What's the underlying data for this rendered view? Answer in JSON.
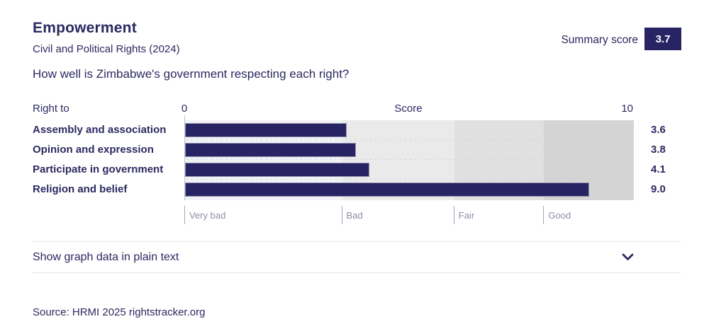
{
  "header": {
    "title": "Empowerment",
    "subtitle": "Civil and Political Rights (2024)",
    "summary_label": "Summary score",
    "summary_value": "3.7"
  },
  "question": "How well is Zimbabwe's government respecting each right?",
  "chart": {
    "col_label": "Right to",
    "axis_min": "0",
    "axis_title": "Score",
    "axis_max": "10",
    "max": 10,
    "bar_color": "#282463",
    "rows": [
      {
        "label": "Assembly and association",
        "value": 3.6,
        "display": "3.6"
      },
      {
        "label": "Opinion and expression",
        "value": 3.8,
        "display": "3.8"
      },
      {
        "label": "Participate in government",
        "value": 4.1,
        "display": "4.1"
      },
      {
        "label": "Religion and belief",
        "value": 9.0,
        "display": "9.0"
      }
    ],
    "bands": [
      {
        "label": "Very bad",
        "from": 0,
        "to": 3.5,
        "color": "#f1f2f6"
      },
      {
        "label": "Bad",
        "from": 3.5,
        "to": 6,
        "color": "#eaeaea"
      },
      {
        "label": "Fair",
        "from": 6,
        "to": 8,
        "color": "#e0e0e0"
      },
      {
        "label": "Good",
        "from": 8,
        "to": 10,
        "color": "#d4d4d4"
      }
    ]
  },
  "chart_data": {
    "type": "bar",
    "orientation": "horizontal",
    "title": "Empowerment",
    "subtitle": "Civil and Political Rights (2024)",
    "categories": [
      "Assembly and association",
      "Opinion and expression",
      "Participate in government",
      "Religion and belief"
    ],
    "values": [
      3.6,
      3.8,
      4.1,
      9.0
    ],
    "xlabel": "Score",
    "xlim": [
      0,
      10
    ],
    "summary_score": 3.7,
    "value_labels_shown": true,
    "grid": false,
    "band_annotations": [
      {
        "label": "Very bad",
        "range": [
          0,
          3.5
        ]
      },
      {
        "label": "Bad",
        "range": [
          3.5,
          6
        ]
      },
      {
        "label": "Fair",
        "range": [
          6,
          8
        ]
      },
      {
        "label": "Good",
        "range": [
          8,
          10
        ]
      }
    ]
  },
  "accordion": {
    "label": "Show graph data in plain text"
  },
  "source": "Source: HRMI 2025 rightstracker.org"
}
